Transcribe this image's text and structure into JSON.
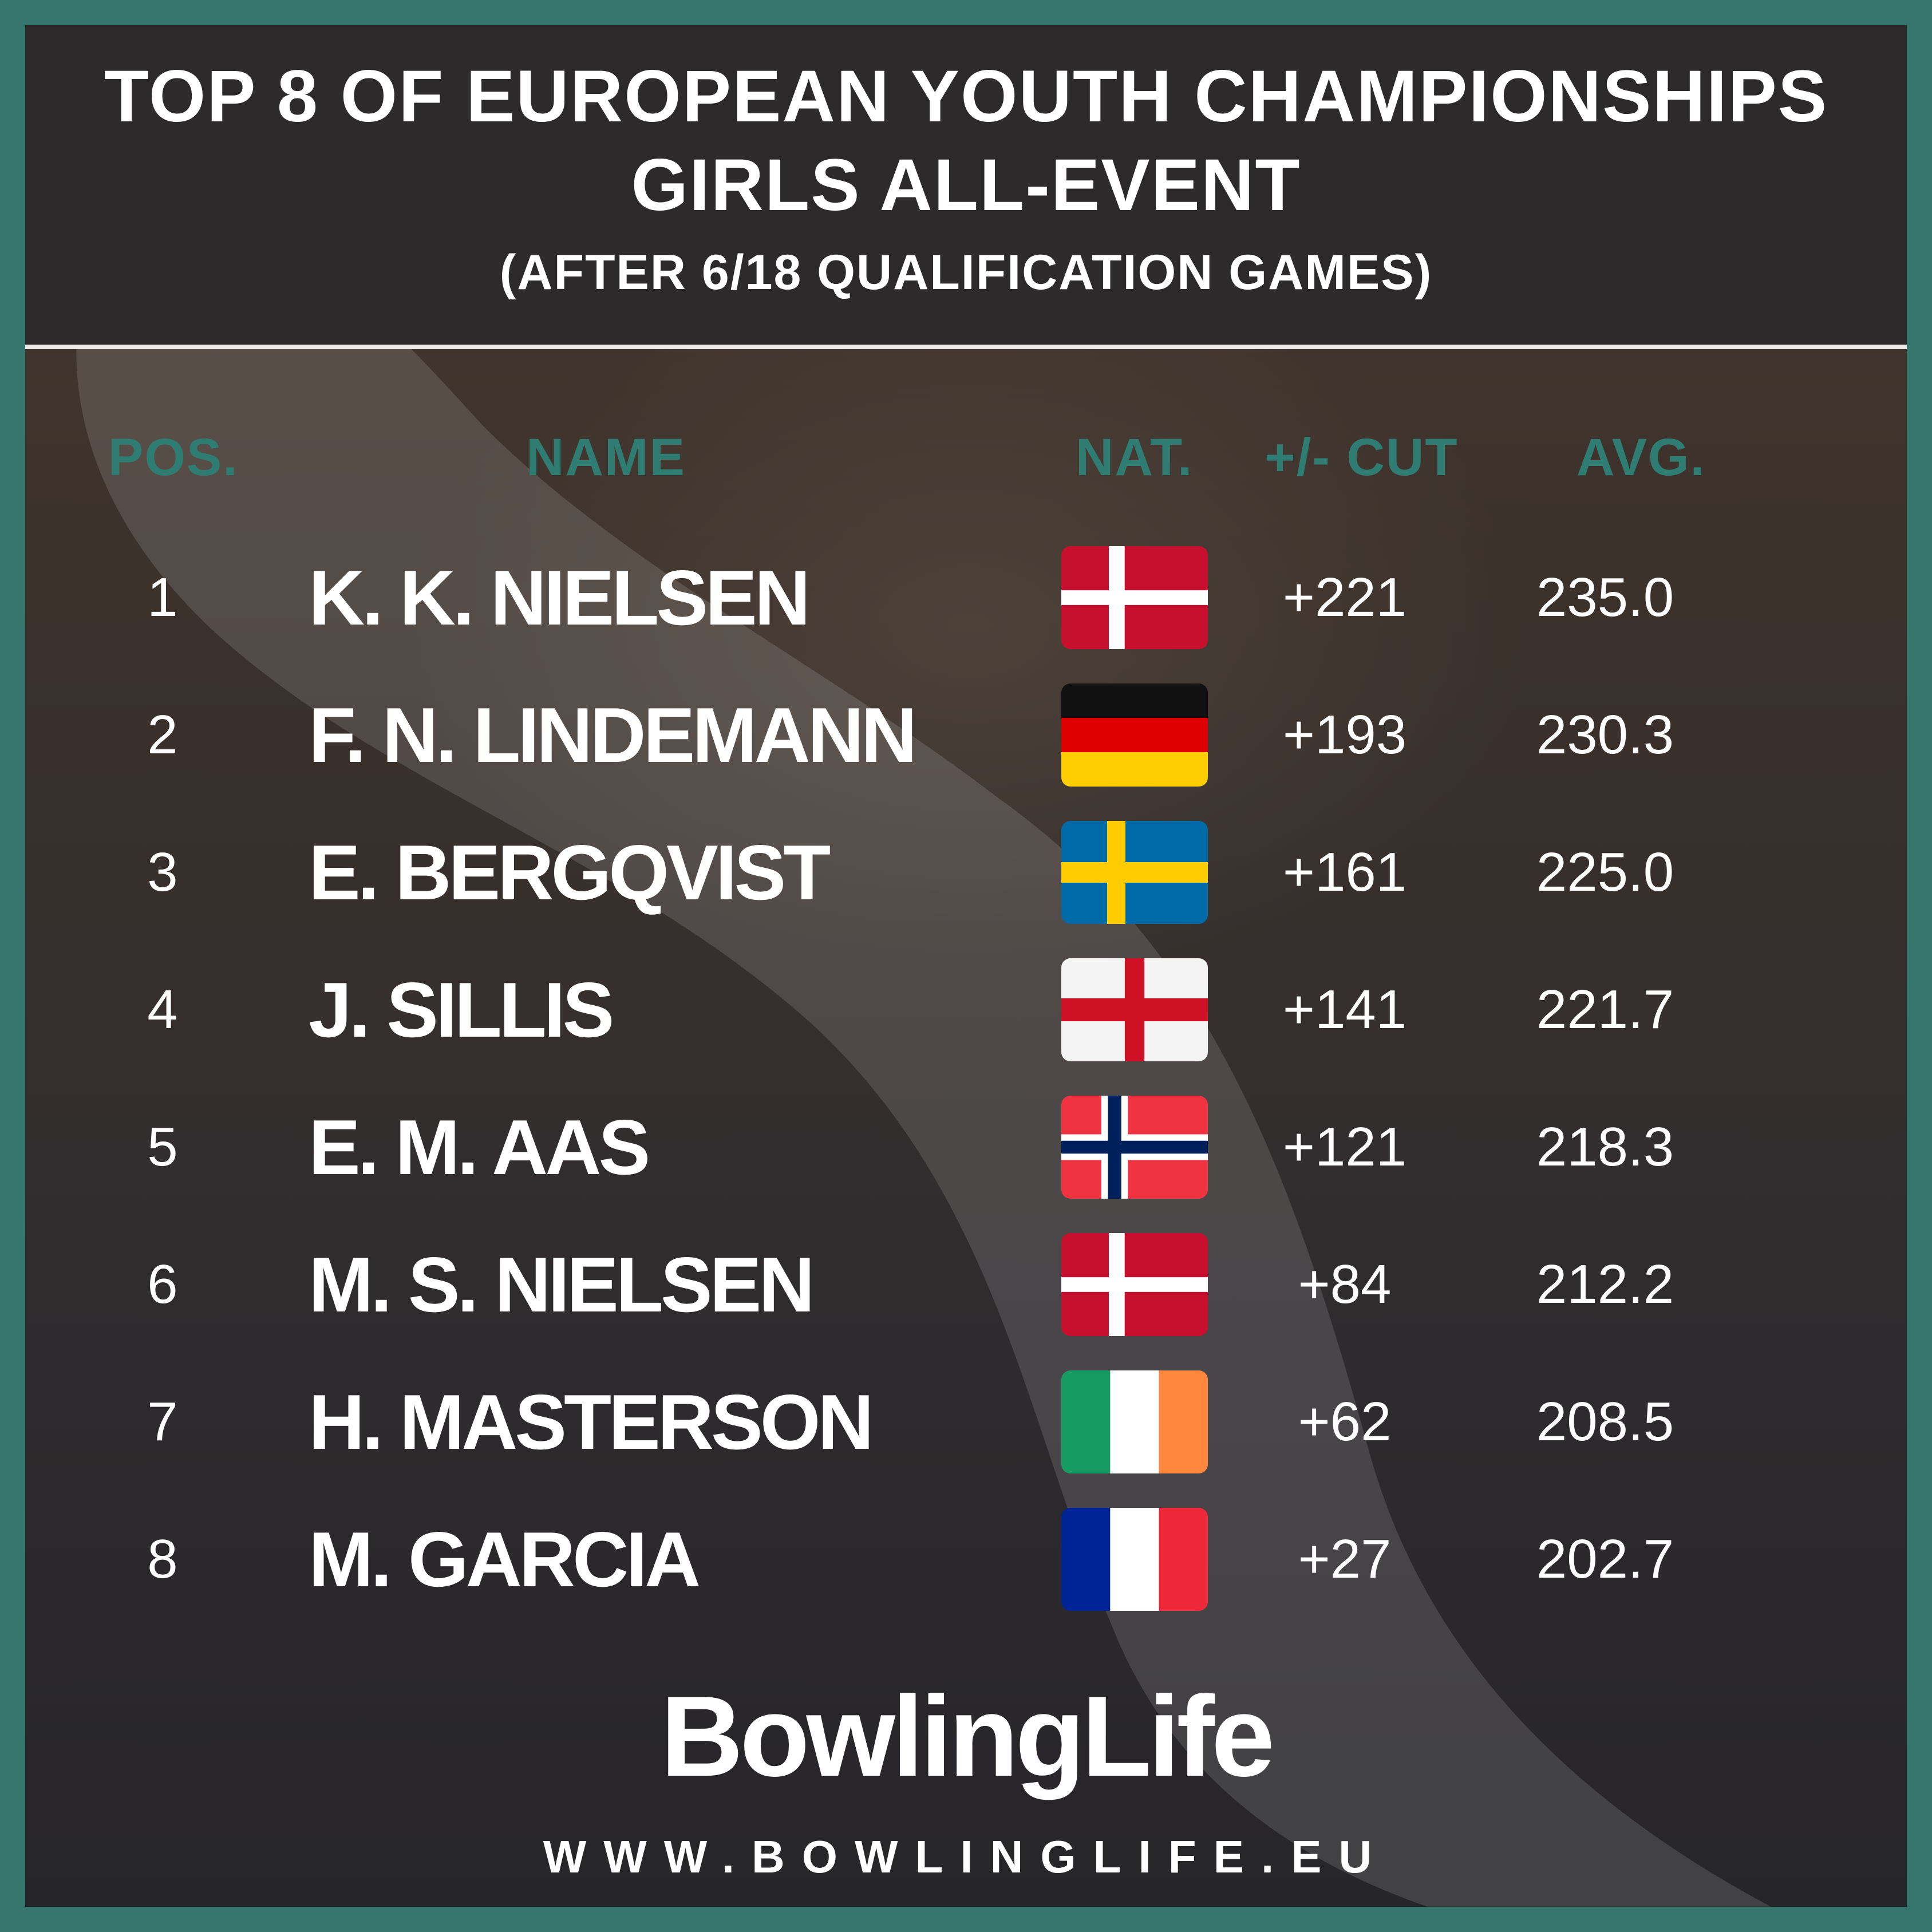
{
  "header": {
    "title_line1": "TOP 8 OF EUROPEAN YOUTH CHAMPIONSHIPS",
    "title_line2": "GIRLS ALL-EVENT",
    "subtitle": "(AFTER 6/18 QUALIFICATION GAMES)"
  },
  "columns": {
    "pos": "POS.",
    "name": "NAME",
    "nat": "NAT.",
    "cut": "+/- CUT",
    "avg": "AVG."
  },
  "rows": [
    {
      "pos": "1",
      "name": "K. K. NIELSEN",
      "flag": "denmark-flag",
      "cut": "+221",
      "avg": "235.0"
    },
    {
      "pos": "2",
      "name": "F. N. LINDEMANN",
      "flag": "germany-flag",
      "cut": "+193",
      "avg": "230.3"
    },
    {
      "pos": "3",
      "name": "E. BERGQVIST",
      "flag": "sweden-flag",
      "cut": "+161",
      "avg": "225.0"
    },
    {
      "pos": "4",
      "name": "J. SILLIS",
      "flag": "england-flag",
      "cut": "+141",
      "avg": "221.7"
    },
    {
      "pos": "5",
      "name": "E. M. AAS",
      "flag": "norway-flag",
      "cut": "+121",
      "avg": "218.3"
    },
    {
      "pos": "6",
      "name": "M. S. NIELSEN",
      "flag": "denmark-flag",
      "cut": "+84",
      "avg": "212.2"
    },
    {
      "pos": "7",
      "name": "H. MASTERSON",
      "flag": "ireland-flag",
      "cut": "+62",
      "avg": "208.5"
    },
    {
      "pos": "8",
      "name": "M. GARCIA",
      "flag": "france-flag",
      "cut": "+27",
      "avg": "202.7"
    }
  ],
  "footer": {
    "logo_text": "BowlingLife",
    "url": "WWW.BOWLINGLIFE.EU"
  },
  "colors": {
    "accent": "#2f7d72",
    "border": "#37766c",
    "header_bg": "#2c2a2b",
    "text": "#ffffff"
  }
}
